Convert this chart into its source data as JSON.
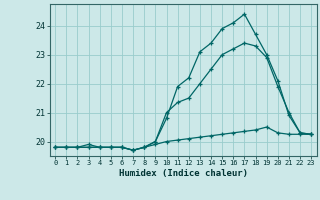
{
  "title": "",
  "xlabel": "Humidex (Indice chaleur)",
  "bg_color": "#cce8e8",
  "grid_color": "#99cccc",
  "line_color": "#006666",
  "line1_y": [
    19.8,
    19.8,
    19.8,
    19.8,
    19.8,
    19.8,
    19.8,
    19.7,
    19.8,
    20.0,
    20.8,
    21.9,
    22.2,
    23.1,
    23.4,
    23.9,
    24.1,
    24.4,
    23.7,
    23.0,
    22.1,
    20.9,
    20.3,
    20.25
  ],
  "line2_y": [
    19.8,
    19.8,
    19.8,
    19.9,
    19.8,
    19.8,
    19.8,
    19.7,
    19.8,
    20.0,
    21.0,
    21.35,
    21.5,
    22.0,
    22.5,
    23.0,
    23.2,
    23.4,
    23.3,
    22.9,
    21.9,
    21.0,
    20.3,
    20.25
  ],
  "line3_y": [
    19.8,
    19.8,
    19.8,
    19.8,
    19.8,
    19.8,
    19.8,
    19.7,
    19.8,
    19.9,
    20.0,
    20.05,
    20.1,
    20.15,
    20.2,
    20.25,
    20.3,
    20.35,
    20.4,
    20.5,
    20.3,
    20.25,
    20.25,
    20.25
  ],
  "xlim": [
    -0.5,
    23.5
  ],
  "ylim": [
    19.5,
    24.75
  ],
  "yticks": [
    20,
    21,
    22,
    23,
    24
  ],
  "xticks": [
    0,
    1,
    2,
    3,
    4,
    5,
    6,
    7,
    8,
    9,
    10,
    11,
    12,
    13,
    14,
    15,
    16,
    17,
    18,
    19,
    20,
    21,
    22,
    23
  ],
  "xtick_labels": [
    "0",
    "1",
    "2",
    "3",
    "4",
    "5",
    "6",
    "7",
    "8",
    "9",
    "10",
    "11",
    "12",
    "13",
    "14",
    "15",
    "16",
    "17",
    "18",
    "19",
    "20",
    "21",
    "22",
    "23"
  ]
}
